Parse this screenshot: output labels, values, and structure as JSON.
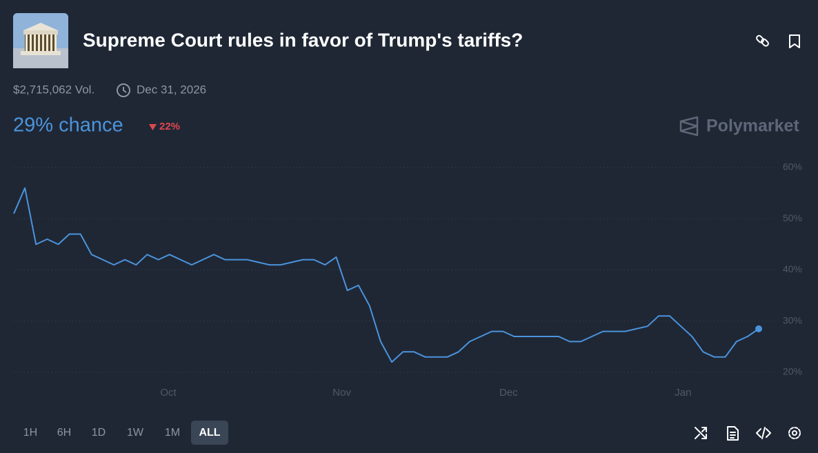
{
  "header": {
    "title": "Supreme Court rules in favor of Trump's tariffs?",
    "volume": "$2,715,062 Vol.",
    "end_date": "Dec 31, 2026",
    "chance": "29% chance",
    "change": "22%",
    "brand": "Polymarket"
  },
  "time_ranges": [
    "1H",
    "6H",
    "1D",
    "1W",
    "1M",
    "ALL"
  ],
  "chart_data": {
    "type": "line",
    "color": "#4b94dc",
    "grid": true,
    "values": [
      51,
      56,
      45,
      46,
      45,
      47,
      47,
      43,
      42,
      41,
      42,
      41,
      43,
      42,
      43,
      42,
      41,
      42,
      43,
      42,
      42,
      42,
      41.5,
      41,
      41,
      41.5,
      42,
      42,
      41,
      42.5,
      36,
      37,
      33,
      26,
      22,
      24,
      24,
      23,
      23,
      23,
      24,
      26,
      27,
      28,
      28,
      27,
      27,
      27,
      27,
      27,
      26,
      26,
      27,
      28,
      28,
      28,
      28.5,
      29,
      31,
      31,
      29,
      27,
      24,
      23,
      23,
      26,
      27,
      28.5
    ],
    "xlim": [
      0,
      67
    ],
    "xticks": [
      {
        "value": 13.9,
        "label": "Oct"
      },
      {
        "value": 29.5,
        "label": "Nov"
      },
      {
        "value": 44.5,
        "label": "Dec"
      },
      {
        "value": 60.2,
        "label": "Jan"
      }
    ],
    "ylim": [
      20,
      60
    ],
    "yticks": [
      {
        "value": 20,
        "label": "20%"
      },
      {
        "value": 30,
        "label": "30%"
      },
      {
        "value": 40,
        "label": "40%"
      },
      {
        "value": 50,
        "label": "50%"
      },
      {
        "value": 60,
        "label": "60%"
      }
    ]
  }
}
